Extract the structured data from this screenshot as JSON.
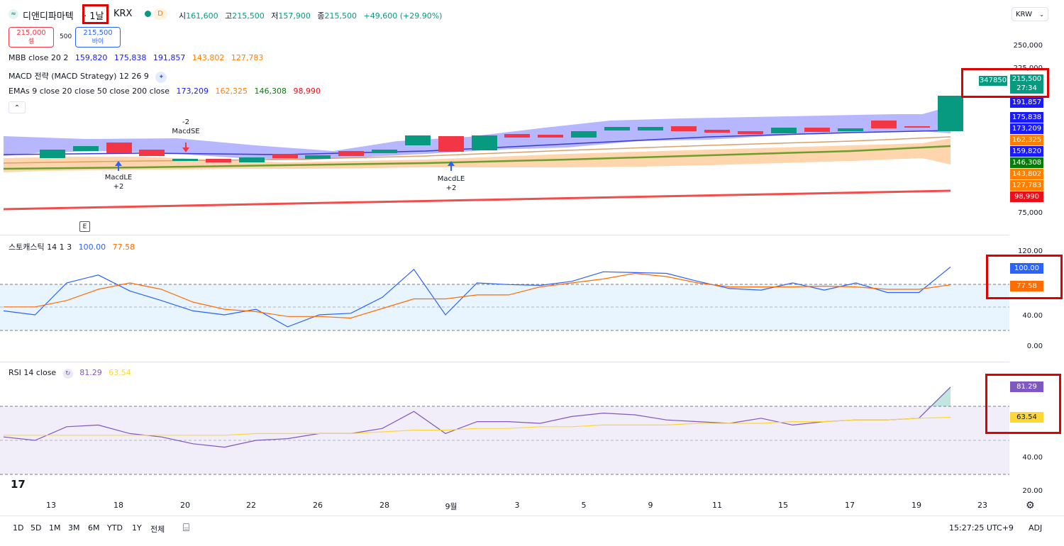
{
  "header": {
    "symbol_name": "디앤디파마텍",
    "interval": "· 1날",
    "exchange": "KRX",
    "d_badge": "D",
    "open_label": "시",
    "open": "161,600",
    "high_label": "고",
    "high": "215,500",
    "low_label": "저",
    "low": "157,900",
    "close_label": "종",
    "close": "215,500",
    "change": "+49,600 (+29.90%)",
    "currency": "KRW"
  },
  "trade": {
    "sell_price": "215,000",
    "sell_label": "셀",
    "spread": "500",
    "buy_price": "215,500",
    "buy_label": "바이"
  },
  "indicators": {
    "mbb": {
      "name": "MBB close 20 2",
      "v1": "159,820",
      "v2": "175,838",
      "v3": "191,857",
      "v4": "143,802",
      "v5": "127,783"
    },
    "macd": {
      "name": "MACD 전략 (MACD Strategy) 12 26 9"
    },
    "emas": {
      "name": "EMAs 9 close 20 close 50 close 200 close",
      "v1": "173,209",
      "v2": "162,325",
      "v3": "146,308",
      "v4": "98,990"
    },
    "stoch": {
      "name": "스토캐스틱 14 1 3",
      "k": "100.00",
      "d": "77.58"
    },
    "rsi": {
      "name": "RSI 14 close",
      "rsi": "81.29",
      "ma": "63.54"
    }
  },
  "signals": {
    "le1": "MacdLE",
    "le1_qty": "+2",
    "se": "MacdSE",
    "se_qty": "-2",
    "le2": "MacdLE",
    "le2_qty": "+2",
    "earnings": "E"
  },
  "price_axis": [
    "250,000",
    "225,000",
    "75,000"
  ],
  "price_tags": [
    {
      "label": "215,500",
      "sub": "27:34",
      "color": "#089981"
    },
    {
      "label": "191,857",
      "color": "#1a1aff"
    },
    {
      "label": "175,838",
      "color": "#1a1aff"
    },
    {
      "label": "173,209",
      "color": "#1a1aff"
    },
    {
      "label": "162,325",
      "color": "#ff8000"
    },
    {
      "label": "159,820",
      "color": "#1a1aff"
    },
    {
      "label": "146,308",
      "color": "#087c0b"
    },
    {
      "label": "143,802",
      "color": "#ff8000"
    },
    {
      "label": "127,783",
      "color": "#ff8000"
    },
    {
      "label": "98,990",
      "color": "#e8101a"
    }
  ],
  "volume_tag": "347850",
  "stoch_axis": [
    "120.00",
    "40.00",
    "0.00"
  ],
  "stoch_tags": {
    "k": "100.00",
    "d": "77.58"
  },
  "rsi_axis": [
    "40.00",
    "20.00"
  ],
  "rsi_tags": {
    "rsi": "81.29",
    "ma": "63.54"
  },
  "x_labels": [
    "13",
    "18",
    "20",
    "22",
    "26",
    "28",
    "9월",
    "3",
    "5",
    "9",
    "11",
    "15",
    "17",
    "19",
    "23"
  ],
  "bottom": {
    "ranges": [
      "1D",
      "5D",
      "1M",
      "3M",
      "6M",
      "YTD",
      "1Y",
      "전체"
    ],
    "time": "15:27:25 UTC+9",
    "adj": "ADJ"
  },
  "chart_data": {
    "type": "candlestick",
    "note_series": [
      {
        "name": "스토캐스틱 %K",
        "values": [
          45,
          40,
          80,
          90,
          70,
          58,
          45,
          40,
          47,
          25,
          40,
          42,
          62,
          97,
          40,
          80,
          78,
          77,
          82,
          94,
          93,
          92,
          82,
          73,
          71,
          80,
          71,
          80,
          68,
          68,
          100
        ]
      },
      {
        "name": "스토캐스틱 %D",
        "values": [
          50,
          50,
          58,
          72,
          80,
          72,
          56,
          47,
          44,
          38,
          38,
          36,
          48,
          60,
          60,
          65,
          65,
          75,
          80,
          85,
          92,
          88,
          80,
          75,
          75,
          75,
          76,
          75,
          72,
          72,
          77.58
        ]
      },
      {
        "name": "RSI",
        "values": [
          52,
          50,
          58,
          59,
          54,
          52,
          48,
          46,
          50,
          51,
          54,
          54,
          57,
          67,
          54,
          61,
          61,
          60,
          64,
          66,
          65,
          62,
          61,
          60,
          63,
          59,
          61,
          62,
          62,
          63,
          81.29
        ]
      },
      {
        "name": "RSI MA",
        "values": [
          53,
          53,
          53,
          53,
          53,
          53,
          53,
          53,
          54,
          54,
          54,
          54,
          55,
          56,
          56,
          57,
          57,
          58,
          58,
          59,
          59,
          59,
          60,
          60,
          60,
          61,
          61,
          62,
          62,
          63,
          63.54
        ]
      }
    ]
  }
}
